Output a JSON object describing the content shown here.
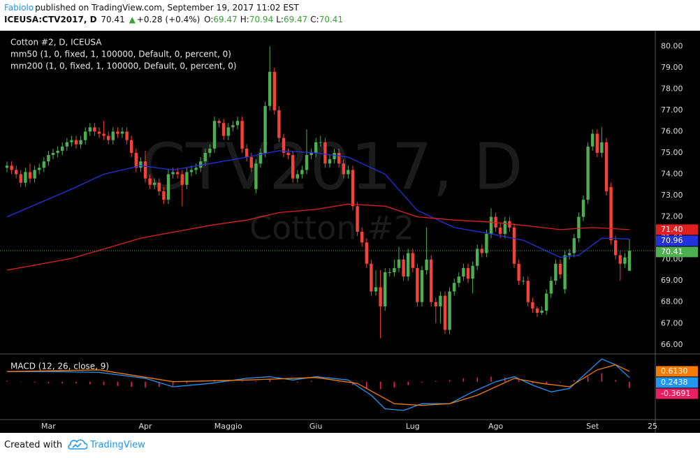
{
  "header": {
    "author": "Fabiolo",
    "published": "published on TradingView.com, September 19, 2017 11:02 EST",
    "symbol": "ICEUSA:CTV2017, D",
    "last": "70.41",
    "arrow": "▲",
    "change": "+0.28 (+0.4%)",
    "ohlc": [
      {
        "key": "O:",
        "value": "69.47"
      },
      {
        "key": "H:",
        "value": "70.94"
      },
      {
        "key": "L:",
        "value": "69.47"
      },
      {
        "key": "C:",
        "value": "70.41"
      }
    ]
  },
  "chart_data": [
    {
      "type": "candlestick",
      "title": "Cotton #2, D, ICEUSA",
      "watermark": [
        "CTV2017, D",
        "Cotton #2"
      ],
      "categories": [
        null,
        null,
        null,
        null,
        null,
        null,
        null,
        null,
        null,
        "Mar",
        null,
        null,
        null,
        null,
        null,
        null,
        null,
        null,
        null,
        null,
        null,
        null,
        null,
        null,
        null,
        null,
        null,
        null,
        null,
        null,
        "Apr",
        null,
        null,
        null,
        null,
        null,
        null,
        null,
        null,
        null,
        null,
        null,
        null,
        null,
        null,
        null,
        null,
        null,
        "Maggio",
        null,
        null,
        null,
        null,
        null,
        null,
        null,
        null,
        null,
        null,
        null,
        null,
        null,
        null,
        null,
        null,
        null,
        null,
        "Giu",
        null,
        null,
        null,
        null,
        null,
        null,
        null,
        null,
        null,
        null,
        null,
        null,
        null,
        null,
        null,
        null,
        null,
        null,
        null,
        null,
        "Lug",
        null,
        null,
        null,
        null,
        null,
        null,
        null,
        null,
        null,
        null,
        null,
        null,
        null,
        null,
        null,
        null,
        null,
        "Ago",
        null,
        null,
        null,
        null,
        null,
        null,
        null,
        null,
        null,
        null,
        null,
        null,
        null,
        null,
        null,
        null,
        null,
        null,
        null,
        null,
        "Set",
        null,
        null,
        null,
        null,
        null,
        null,
        null,
        null,
        null,
        null,
        null,
        null,
        "25"
      ],
      "open": [
        74.3,
        74.4,
        74.2,
        74.0,
        73.6,
        74.1,
        73.8,
        74.2,
        74.3,
        74.6,
        74.9,
        75.0,
        75.1,
        75.3,
        75.5,
        75.6,
        75.4,
        75.6,
        76.0,
        76.2,
        76.0,
        75.9,
        75.8,
        75.6,
        76.0,
        75.9,
        76.0,
        75.6,
        75.0,
        74.3,
        74.6,
        73.8,
        73.5,
        73.6,
        73.2,
        72.8,
        74.0,
        74.1,
        74.0,
        73.5,
        74.1,
        74.2,
        74.3,
        74.6,
        75.0,
        75.2,
        76.5,
        76.4,
        75.8,
        76.2,
        76.3,
        76.5,
        75.2,
        74.8,
        73.3,
        74.5,
        75.0,
        77.2,
        78.8,
        77.0,
        75.7,
        75.0,
        74.9,
        73.8,
        74.0,
        74.2,
        74.9,
        75.0,
        75.5,
        75.5,
        74.5,
        74.7,
        75.0,
        74.5,
        74.0,
        74.2,
        72.5,
        71.3,
        70.8,
        69.8,
        68.5,
        68.7,
        67.8,
        69.4,
        69.4,
        69.6,
        70.0,
        69.2,
        70.3,
        69.6,
        68.0,
        69.5,
        70.0,
        68.0,
        67.8,
        68.3,
        66.7,
        68.5,
        68.9,
        69.2,
        69.6,
        69.1,
        69.7,
        70.5,
        70.3,
        71.2,
        72.0,
        71.5,
        71.2,
        71.8,
        71.5,
        69.8,
        69.0,
        69.0,
        68.0,
        67.7,
        67.5,
        67.6,
        68.4,
        69.0,
        69.8,
        68.6,
        70.2,
        70.3,
        71.0,
        72.0,
        72.8,
        75.3,
        75.9,
        75.0,
        75.5,
        73.4,
        70.9,
        70.2,
        69.8,
        69.47,
        null,
        null,
        null,
        null,
        null
      ],
      "high": [
        74.6,
        74.6,
        74.4,
        74.2,
        74.3,
        74.5,
        74.4,
        74.5,
        74.8,
        75.1,
        75.2,
        75.3,
        75.5,
        75.7,
        75.8,
        75.8,
        75.8,
        76.2,
        76.4,
        76.4,
        76.2,
        76.5,
        76.0,
        76.2,
        76.2,
        76.2,
        76.2,
        75.8,
        75.2,
        74.8,
        75.1,
        74.0,
        73.8,
        73.8,
        73.4,
        74.2,
        74.3,
        74.3,
        74.2,
        74.3,
        74.4,
        74.5,
        74.8,
        75.2,
        75.4,
        76.7,
        76.6,
        76.6,
        76.4,
        76.5,
        76.7,
        76.7,
        75.4,
        75.0,
        74.7,
        75.2,
        77.4,
        80.0,
        79.0,
        77.2,
        75.9,
        75.2,
        75.1,
        74.2,
        74.4,
        76.1,
        75.2,
        75.7,
        75.8,
        75.7,
        74.9,
        75.2,
        75.2,
        74.7,
        74.4,
        74.4,
        72.7,
        71.5,
        71.0,
        70.0,
        69.5,
        69.5,
        69.6,
        69.6,
        70.0,
        70.6,
        70.2,
        70.5,
        70.5,
        69.8,
        69.7,
        71.5,
        70.2,
        68.2,
        68.5,
        68.5,
        68.7,
        69.1,
        69.4,
        69.8,
        69.8,
        69.9,
        70.7,
        70.7,
        71.4,
        72.4,
        72.2,
        71.7,
        72.0,
        72.0,
        71.7,
        70.0,
        69.2,
        69.2,
        68.2,
        67.8,
        67.8,
        68.6,
        69.2,
        70.0,
        70.0,
        70.4,
        70.5,
        71.2,
        72.2,
        73.0,
        75.5,
        76.1,
        76.1,
        76.2,
        75.7,
        73.6,
        71.1,
        70.4,
        70.3,
        70.94,
        null,
        null,
        null,
        null,
        null
      ],
      "low": [
        74.1,
        74.0,
        73.8,
        73.4,
        73.4,
        73.6,
        73.6,
        74.0,
        74.1,
        74.4,
        74.7,
        74.8,
        74.9,
        75.1,
        75.3,
        75.2,
        75.2,
        75.4,
        75.8,
        75.8,
        75.7,
        75.6,
        75.4,
        75.4,
        75.7,
        75.7,
        75.4,
        74.8,
        74.1,
        74.1,
        73.6,
        73.3,
        73.3,
        73.0,
        72.6,
        72.6,
        73.8,
        73.8,
        72.5,
        73.3,
        73.9,
        74.0,
        74.1,
        74.4,
        74.8,
        75.0,
        76.2,
        75.6,
        75.6,
        76.0,
        76.1,
        75.0,
        74.6,
        74.1,
        73.1,
        74.3,
        74.8,
        77.0,
        76.8,
        75.5,
        74.8,
        74.7,
        73.6,
        73.6,
        73.8,
        74.0,
        74.7,
        74.8,
        75.3,
        74.3,
        74.3,
        74.5,
        74.3,
        73.8,
        73.8,
        72.3,
        71.1,
        70.6,
        69.6,
        68.3,
        68.3,
        66.3,
        67.6,
        69.2,
        69.2,
        69.4,
        69.0,
        69.0,
        69.4,
        67.8,
        67.8,
        69.3,
        67.8,
        67.0,
        67.0,
        66.5,
        66.5,
        68.3,
        68.7,
        69.0,
        68.9,
        68.4,
        69.5,
        70.1,
        70.1,
        71.0,
        71.3,
        71.0,
        71.0,
        71.3,
        69.6,
        68.8,
        68.8,
        67.8,
        67.5,
        67.3,
        67.4,
        67.4,
        68.2,
        68.8,
        69.1,
        68.4,
        70.0,
        70.1,
        70.8,
        71.8,
        72.6,
        75.1,
        74.8,
        74.8,
        73.0,
        70.7,
        70.0,
        69.0,
        69.6,
        69.47,
        null,
        null,
        null,
        null,
        null
      ],
      "close": [
        74.4,
        74.2,
        74.0,
        73.6,
        74.1,
        73.8,
        74.2,
        74.3,
        74.6,
        74.9,
        75.0,
        75.1,
        75.3,
        75.5,
        75.6,
        75.4,
        75.6,
        76.0,
        76.2,
        76.0,
        75.9,
        75.8,
        75.6,
        76.0,
        75.9,
        76.0,
        75.6,
        75.0,
        74.3,
        74.6,
        73.8,
        73.5,
        73.6,
        73.2,
        72.8,
        74.0,
        74.1,
        74.0,
        73.5,
        74.1,
        74.2,
        74.3,
        74.6,
        75.0,
        75.2,
        76.5,
        76.4,
        75.8,
        76.2,
        76.3,
        76.5,
        75.2,
        74.8,
        74.3,
        74.5,
        75.0,
        77.2,
        78.8,
        77.0,
        75.7,
        75.0,
        74.9,
        73.8,
        74.0,
        74.2,
        74.9,
        75.0,
        75.5,
        75.5,
        74.5,
        74.7,
        75.0,
        74.5,
        74.0,
        74.2,
        72.5,
        71.3,
        70.8,
        69.8,
        68.5,
        68.7,
        67.8,
        69.4,
        69.4,
        69.6,
        70.0,
        69.2,
        70.3,
        69.6,
        68.0,
        69.5,
        70.0,
        68.0,
        67.8,
        68.3,
        66.7,
        68.5,
        68.9,
        69.2,
        69.6,
        69.1,
        69.7,
        70.5,
        70.3,
        71.2,
        72.0,
        71.5,
        71.2,
        71.8,
        71.5,
        69.8,
        69.0,
        69.0,
        68.0,
        67.7,
        67.5,
        67.6,
        68.4,
        69.0,
        69.8,
        69.3,
        70.2,
        70.3,
        71.0,
        72.0,
        72.8,
        75.3,
        75.9,
        75.0,
        75.5,
        73.2,
        70.9,
        70.2,
        69.8,
        70.1,
        70.41,
        null,
        null,
        null,
        null,
        null
      ],
      "close_label": "70.41",
      "up_color": "#4caf50",
      "down_color": "#f44336",
      "series": [
        {
          "name": "mm50 (1, 0, fixed, 1, 100000, Default, 0, percent, 0)",
          "color": "#2233dd",
          "x": [
            0,
            14,
            21,
            29,
            36,
            44,
            52,
            59,
            67,
            74,
            82,
            89,
            97,
            105,
            112,
            120,
            124,
            129,
            135
          ],
          "values": [
            72.0,
            73.3,
            74.0,
            74.4,
            74.2,
            74.5,
            74.8,
            75.1,
            75.0,
            74.8,
            74.0,
            72.3,
            71.5,
            71.2,
            70.9,
            70.1,
            70.2,
            71.0,
            70.96
          ],
          "last_label": "70.96"
        },
        {
          "name": "mm200 (1, 0, fixed, 1, 100000, Default, 0, percent, 0)",
          "color": "#e02020",
          "x": [
            0,
            14,
            29,
            44,
            52,
            59,
            67,
            74,
            82,
            89,
            97,
            105,
            112,
            120,
            127,
            135
          ],
          "values": [
            69.5,
            70.05,
            71.0,
            71.6,
            71.85,
            72.2,
            72.35,
            72.6,
            72.5,
            72.0,
            71.85,
            71.75,
            71.6,
            71.4,
            71.5,
            71.4
          ],
          "last_label": "71.40"
        }
      ],
      "ylim": [
        65.6,
        80.6
      ],
      "yticks": [
        {
          "value": 66,
          "label": "66.00"
        },
        {
          "value": 67,
          "label": "67.00"
        },
        {
          "value": 68,
          "label": "68.00"
        },
        {
          "value": 69,
          "label": "69.00"
        },
        {
          "value": 70,
          "label": "70.00"
        },
        {
          "value": 71,
          "label": "71.00"
        },
        {
          "value": 72,
          "label": "72.00"
        },
        {
          "value": 73,
          "label": "73.00"
        },
        {
          "value": 74,
          "label": "74.00"
        },
        {
          "value": 75,
          "label": "75.00"
        },
        {
          "value": 76,
          "label": "76.00"
        },
        {
          "value": 77,
          "label": "77.00"
        },
        {
          "value": 78,
          "label": "78.00"
        },
        {
          "value": 79,
          "label": "79.00"
        },
        {
          "value": 80,
          "label": "80.00"
        }
      ],
      "grid": true
    },
    {
      "type": "macd",
      "title": "MACD (12, 26, close, 9)",
      "ylim": [
        -2.2,
        1.6
      ],
      "series": [
        {
          "color": "#2196f3",
          "x": [
            0,
            10,
            20,
            30,
            36,
            44,
            52,
            57,
            62,
            67,
            74,
            79,
            82,
            86,
            90,
            96,
            101,
            106,
            110,
            114,
            118,
            122,
            126,
            129,
            132,
            135
          ],
          "values": [
            0.6,
            0.6,
            0.55,
            0.2,
            -0.3,
            -0.1,
            0.2,
            0.3,
            0.1,
            0.3,
            0.1,
            -0.8,
            -1.6,
            -1.7,
            -1.3,
            -1.3,
            -0.6,
            0.0,
            0.3,
            -0.2,
            -0.6,
            -0.4,
            0.6,
            1.35,
            1.0,
            0.2438
          ],
          "last_label": "0.2438"
        },
        {
          "color": "#f57c00",
          "x": [
            0,
            20,
            36,
            52,
            67,
            76,
            84,
            90,
            96,
            102,
            110,
            116,
            122,
            128,
            132,
            135
          ],
          "values": [
            0.6,
            0.7,
            0.0,
            0.1,
            0.25,
            -0.1,
            -1.3,
            -1.4,
            -1.3,
            -0.8,
            0.2,
            -0.1,
            -0.3,
            0.7,
            1.0,
            0.613
          ],
          "last_label": "0.6130"
        }
      ],
      "histogram": {
        "color": "#e91e63",
        "x": [
          0,
          3,
          6,
          9,
          12,
          15,
          18,
          21,
          24,
          27,
          30,
          33,
          36,
          39,
          42,
          45,
          48,
          51,
          54,
          57,
          60,
          63,
          66,
          69,
          72,
          75,
          78,
          81,
          84,
          87,
          90,
          93,
          96,
          99,
          102,
          105,
          108,
          111,
          114,
          117,
          120,
          123,
          126,
          129,
          132,
          135
        ],
        "values": [
          0.05,
          0.0,
          -0.05,
          -0.1,
          -0.1,
          -0.1,
          -0.15,
          -0.2,
          -0.25,
          -0.3,
          -0.35,
          -0.3,
          -0.25,
          -0.1,
          0.05,
          0.1,
          0.1,
          0.05,
          0.05,
          0.1,
          0.0,
          -0.05,
          0.05,
          0.0,
          -0.05,
          -0.2,
          -0.4,
          -0.45,
          -0.35,
          -0.2,
          -0.05,
          0.05,
          0.1,
          0.2,
          0.25,
          0.3,
          0.25,
          0.1,
          -0.1,
          -0.15,
          -0.05,
          0.1,
          0.3,
          0.5,
          0.1,
          -0.3691
        ],
        "last_label": "-0.3691"
      }
    }
  ],
  "footer": {
    "created": "Created with",
    "brand": "TradingView"
  }
}
